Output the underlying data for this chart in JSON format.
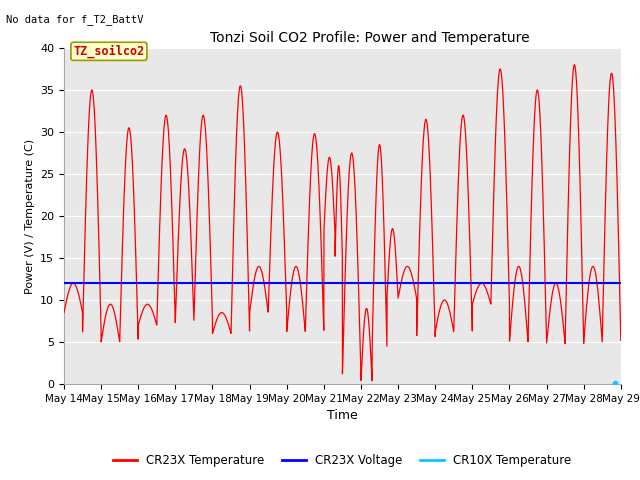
{
  "title": "Tonzi Soil CO2 Profile: Power and Temperature",
  "subtitle": "No data for f_T2_BattV",
  "ylabel": "Power (V) / Temperature (C)",
  "xlabel": "Time",
  "ylim": [
    0,
    40
  ],
  "xlim": [
    0,
    15
  ],
  "xtick_labels": [
    "May 14",
    "May 15",
    "May 16",
    "May 17",
    "May 18",
    "May 19",
    "May 20",
    "May 21",
    "May 22",
    "May 23",
    "May 24",
    "May 25",
    "May 26",
    "May 27",
    "May 28",
    "May 29"
  ],
  "annotation_box": "TZ_soilco2",
  "background_color": "#e8e8e8",
  "line_color_red": "#ff0000",
  "line_color_blue": "#0000ff",
  "line_color_cyan": "#00ccff",
  "legend_labels": [
    "CR23X Temperature",
    "CR23X Voltage",
    "CR10X Temperature"
  ],
  "voltage_value": 12.0,
  "temp_min_values": [
    8.5,
    6.2,
    5.0,
    7.0,
    7.5,
    6.0,
    6.2,
    8.5,
    1.0,
    0.3,
    4.3,
    10.2,
    5.5,
    6.2,
    9.5,
    5.0,
    4.8,
    5.2
  ],
  "temp_max_values": [
    35.0,
    29.5,
    30.5,
    32.0,
    32.0,
    35.5,
    30.0,
    29.8,
    27.0,
    27.5,
    28.5,
    31.5,
    32.0,
    37.5,
    35.0,
    38.0,
    37.0,
    13.0
  ],
  "cr10x_dot_x": 14.85,
  "cr10x_dot_y": 0.15
}
